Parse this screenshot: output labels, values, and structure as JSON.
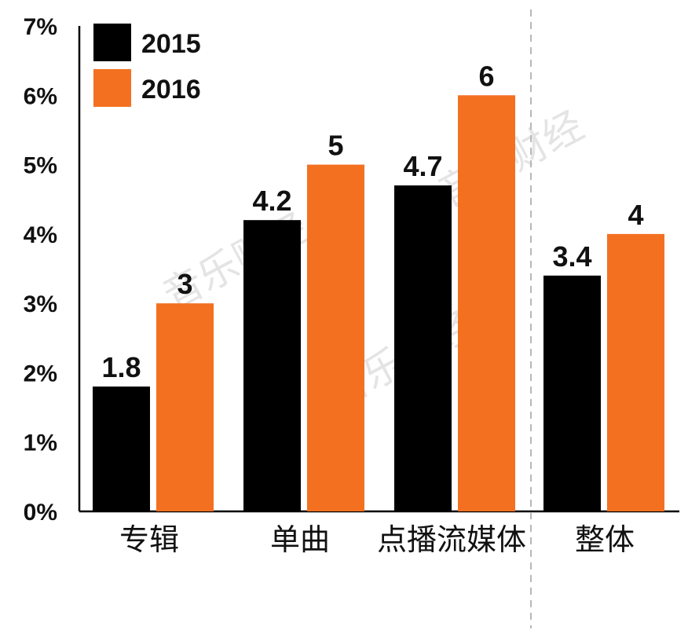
{
  "watermark": "音乐财经",
  "chart_data": {
    "type": "bar",
    "categories": [
      "专辑",
      "单曲",
      "点播流媒体",
      "整体"
    ],
    "series": [
      {
        "name": "2015",
        "color": "#000000",
        "values": [
          1.8,
          4.2,
          4.7,
          3.4
        ],
        "labels": [
          "1.8",
          "4.2",
          "4.7",
          "3.4"
        ]
      },
      {
        "name": "2016",
        "color": "#f37021",
        "values": [
          3,
          5,
          6,
          4
        ],
        "labels": [
          "3",
          "5",
          "6",
          "4"
        ]
      }
    ],
    "ylim": [
      0,
      7
    ],
    "yticks": [
      "0%",
      "1%",
      "2%",
      "3%",
      "4%",
      "5%",
      "6%",
      "7%"
    ],
    "legend_position": "top-left",
    "grid": false,
    "separator_before_category": 3
  }
}
